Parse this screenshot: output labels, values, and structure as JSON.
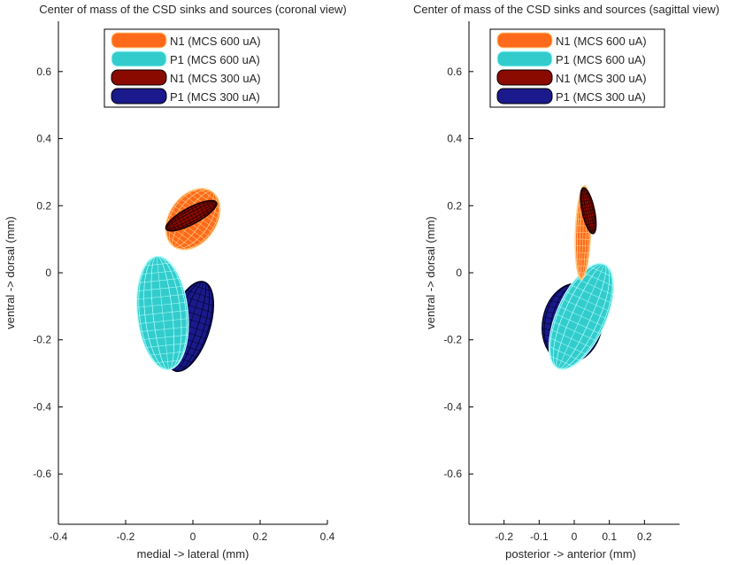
{
  "chart_data": [
    {
      "type": "ellipsoid-surface",
      "title": "Center of mass of the CSD sinks and sources (coronal view)",
      "xlabel": "medial -> lateral (mm)",
      "ylabel": "ventral -> dorsal (mm)",
      "xlim": [
        -0.4,
        0.4
      ],
      "ylim": [
        -0.75,
        0.75
      ],
      "xticks": [
        -0.4,
        -0.2,
        0,
        0.2,
        0.4
      ],
      "xtick_labels": [
        "-0.4",
        "-0.2",
        "0",
        "0.2",
        "0.4"
      ],
      "yticks": [
        -0.6,
        -0.4,
        -0.2,
        0,
        0.2,
        0.4,
        0.6
      ],
      "ytick_labels": [
        "-0.6",
        "-0.4",
        "-0.2",
        "0",
        "0.2",
        "0.4",
        "0.6"
      ],
      "legend_position": "top-center",
      "series": [
        {
          "name": "N1 (MCS 600 uA)",
          "color": "#ff6a1a",
          "mesh": "#ffd18a",
          "center": [
            0.0,
            0.16
          ],
          "radius": [
            0.07,
            0.1
          ],
          "angle_deg": 35
        },
        {
          "name": "P1 (MCS 600 uA)",
          "color": "#33cccc",
          "mesh": "#b8ffff",
          "center": [
            -0.09,
            -0.12
          ],
          "radius": [
            0.075,
            0.17
          ],
          "angle_deg": -6
        },
        {
          "name": "N1 (MCS 300 uA)",
          "color": "#8b0a00",
          "mesh": "#1a0000",
          "center": [
            -0.005,
            0.17
          ],
          "radius": [
            0.025,
            0.085
          ],
          "angle_deg": 62
        },
        {
          "name": "P1 (MCS 300 uA)",
          "color": "#1a1a8c",
          "mesh": "#000020",
          "center": [
            -0.01,
            -0.16
          ],
          "radius": [
            0.06,
            0.14
          ],
          "angle_deg": 18
        }
      ]
    },
    {
      "type": "ellipsoid-surface",
      "title": "Center of mass of the CSD sinks and sources (sagittal view)",
      "xlabel": "posterior -> anterior (mm)",
      "ylabel": "ventral -> dorsal (mm)",
      "xlim": [
        -0.3,
        0.3
      ],
      "ylim": [
        -0.75,
        0.75
      ],
      "xticks": [
        -0.2,
        -0.1,
        0,
        0.1,
        0.2
      ],
      "xtick_labels": [
        "-0.2",
        "-0.1",
        "0",
        "0.1",
        "0.2"
      ],
      "yticks": [
        -0.6,
        -0.4,
        -0.2,
        0,
        0.2,
        0.4,
        0.6
      ],
      "ytick_labels": [
        "-0.6",
        "-0.4",
        "-0.2",
        "0",
        "0.2",
        "0.4",
        "0.6"
      ],
      "legend_position": "top-center",
      "series": [
        {
          "name": "N1 (MCS 600 uA)",
          "color": "#ff6a1a",
          "mesh": "#ffd18a",
          "center": [
            0.025,
            0.12
          ],
          "radius": [
            0.022,
            0.14
          ],
          "angle_deg": 2
        },
        {
          "name": "P1 (MCS 600 uA)",
          "color": "#33cccc",
          "mesh": "#b8ffff",
          "center": [
            0.02,
            -0.13
          ],
          "radius": [
            0.07,
            0.17
          ],
          "angle_deg": 24
        },
        {
          "name": "N1 (MCS 300 uA)",
          "color": "#8b0a00",
          "mesh": "#1a0000",
          "center": [
            0.04,
            0.185
          ],
          "radius": [
            0.018,
            0.07
          ],
          "angle_deg": -12
        },
        {
          "name": "P1 (MCS 300 uA)",
          "color": "#1a1a8c",
          "mesh": "#000020",
          "center": [
            -0.005,
            -0.15
          ],
          "radius": [
            0.085,
            0.12
          ],
          "angle_deg": 12
        }
      ]
    }
  ]
}
